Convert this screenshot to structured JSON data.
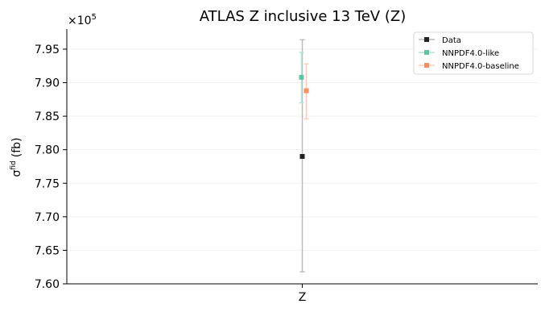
{
  "chart_data": {
    "type": "scatter",
    "title": "ATLAS Z inclusive 13 TeV (Z)",
    "xlabel": "",
    "ylabel": "σ",
    "ylabel_superscript": "fid",
    "ylabel_unit": "(fb)",
    "y_multiplier": "×10",
    "y_multiplier_exponent": "5",
    "categories": [
      "Z"
    ],
    "ylim": [
      7.6,
      7.98
    ],
    "yticks": [
      "7.60",
      "7.65",
      "7.70",
      "7.75",
      "7.80",
      "7.85",
      "7.90",
      "7.95"
    ],
    "grid": "horizontal-faint",
    "legend_position": "top-right",
    "series": [
      {
        "name": "Data",
        "color": "#222222",
        "errcolor": "#bbbbbb",
        "offset": 0,
        "values": [
          7.79
        ],
        "err_low": [
          7.618
        ],
        "err_high": [
          7.964
        ]
      },
      {
        "name": "NNPDF4.0-like",
        "color": "#66c2a5",
        "errcolor": "#b8e3d6",
        "offset": -1,
        "values": [
          7.908
        ],
        "err_low": [
          7.87
        ],
        "err_high": [
          7.945
        ]
      },
      {
        "name": "NNPDF4.0-baseline",
        "color": "#fc8d62",
        "errcolor": "#fdcdb9",
        "offset": 5,
        "values": [
          7.888
        ],
        "err_low": [
          7.846
        ],
        "err_high": [
          7.928
        ]
      }
    ]
  }
}
